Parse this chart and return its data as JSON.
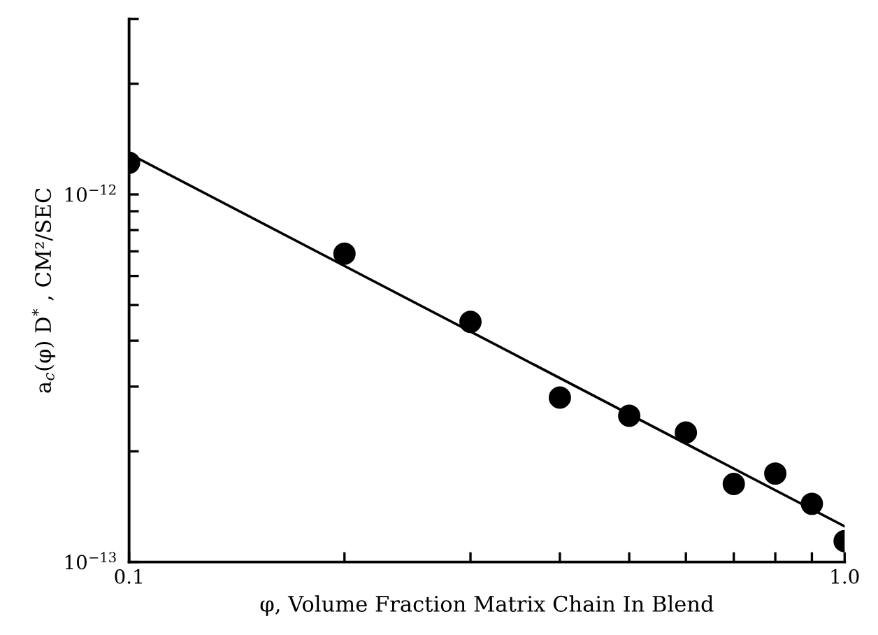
{
  "chart_data": {
    "type": "scatter",
    "xlabel": "φ, Volume Fraction Matrix Chain In Blend",
    "ylabel": "a$_{c}$(φ) D$^{*}$ , CM²/SEC",
    "x": [
      0.1,
      0.2,
      0.3,
      0.4,
      0.5,
      0.6,
      0.7,
      0.8,
      0.9,
      1.0
    ],
    "log": "xy",
    "marker": "circle",
    "grid": false,
    "series": [
      {
        "color": "#000000",
        "values": [
          1.22e-12,
          6.9e-13,
          4.5e-13,
          2.8e-13,
          2.5e-13,
          2.25e-13,
          1.63e-13,
          1.74e-13,
          1.44e-13,
          1.14e-13
        ]
      },
      {
        "type": "line",
        "color": "#000000",
        "marker": "none",
        "line_style": "solid",
        "x": [
          0.1,
          1.0
        ],
        "values": [
          1.29e-12,
          1.25e-13
        ]
      }
    ],
    "xlim": [
      0.1,
      1.0
    ],
    "xticks": [
      {
        "value": 0.1,
        "label": "0.1"
      },
      {
        "value": 0.2,
        "label": null
      },
      {
        "value": 0.3,
        "label": null
      },
      {
        "value": 0.4,
        "label": null
      },
      {
        "value": 0.5,
        "label": null
      },
      {
        "value": 0.6,
        "label": null
      },
      {
        "value": 0.7,
        "label": null
      },
      {
        "value": 0.8,
        "label": null
      },
      {
        "value": 0.9,
        "label": null
      },
      {
        "value": 1.0,
        "label": "1.0"
      }
    ],
    "ylim": [
      1e-13,
      3e-12
    ],
    "yticks": [
      {
        "value": 1e-13,
        "label": "10$^{−13}$"
      },
      {
        "value": 2e-13,
        "label": null
      },
      {
        "value": 3e-13,
        "label": null
      },
      {
        "value": 4e-13,
        "label": null
      },
      {
        "value": 5e-13,
        "label": null
      },
      {
        "value": 6e-13,
        "label": null
      },
      {
        "value": 7e-13,
        "label": null
      },
      {
        "value": 8e-13,
        "label": null
      },
      {
        "value": 9e-13,
        "label": null
      },
      {
        "value": 1e-12,
        "label": "10$^{−12}$"
      },
      {
        "value": 2e-12,
        "label": null
      },
      {
        "value": 3e-12,
        "label": null
      }
    ]
  }
}
